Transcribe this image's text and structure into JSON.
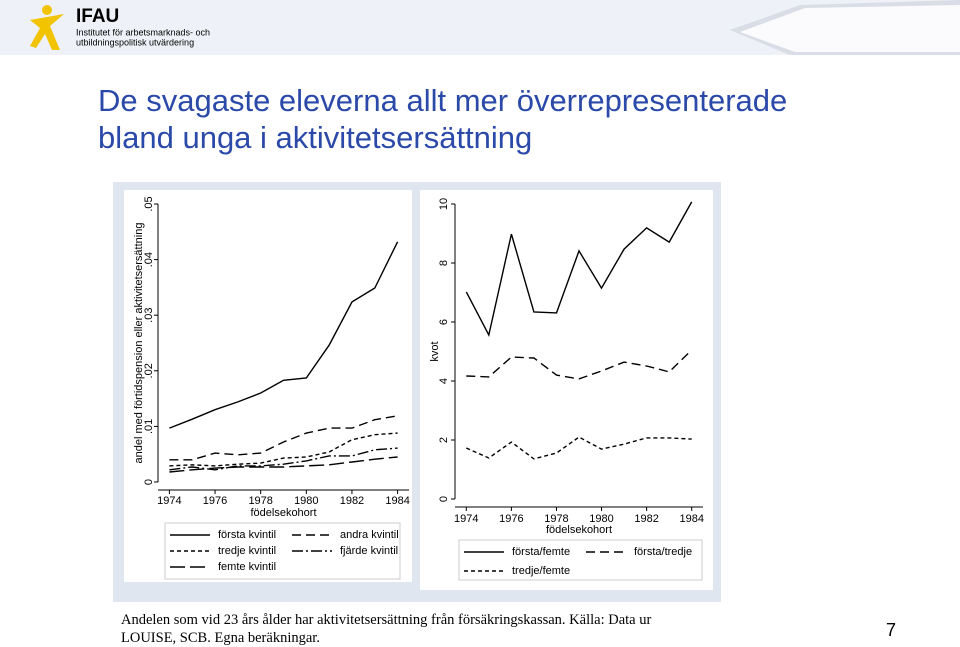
{
  "header": {
    "logo": "IFAU",
    "logo_subtitle_1": "Institutet för arbetsmarknads- och",
    "logo_subtitle_2": "utbildningspolitisk utvärdering",
    "title": "De svagaste eleverna allt mer överrepresenterade bland unga i aktivitetsersättning"
  },
  "chart_data": [
    {
      "type": "line",
      "x_label": "födelsekohort",
      "y_label": "andel med förtidspension eller aktivitetsersättning",
      "x": [
        1974,
        1975,
        1976,
        1977,
        1978,
        1979,
        1980,
        1981,
        1982,
        1983,
        1984
      ],
      "xlim": [
        1973.5,
        1984.5
      ],
      "xticks": [
        1974,
        1976,
        1978,
        1980,
        1982,
        1984
      ],
      "ylim": [
        0,
        0.05
      ],
      "yticks": [
        0,
        {
          "value": 0.01,
          "label": ".01"
        },
        {
          "value": 0.02,
          "label": ".02"
        },
        {
          "value": 0.03,
          "label": ".03"
        },
        {
          "value": 0.04,
          "label": ".04"
        },
        {
          "value": 0.05,
          "label": ".05"
        }
      ],
      "series": [
        {
          "name": "första kvintil",
          "color": "#000000",
          "dash": "solid",
          "values": [
            0.0097,
            0.0113,
            0.013,
            0.0144,
            0.016,
            0.0183,
            0.0187,
            0.0246,
            0.0324,
            0.0349,
            0.0432
          ]
        },
        {
          "name": "andra kvintil",
          "color": "#000000",
          "dash": "dash",
          "values": [
            0.004,
            0.004,
            0.0052,
            0.0049,
            0.0052,
            0.0072,
            0.0088,
            0.0097,
            0.0097,
            0.0112,
            0.0119
          ]
        },
        {
          "name": "tredje kvintil",
          "color": "#000000",
          "dash": "shortdash",
          "values": [
            0.0029,
            0.0031,
            0.0029,
            0.0032,
            0.0034,
            0.0043,
            0.0045,
            0.0054,
            0.0076,
            0.0085,
            0.0088
          ]
        },
        {
          "name": "fjärde kvintil",
          "color": "#000000",
          "dash": "dashdot",
          "values": [
            0.0022,
            0.0027,
            0.0022,
            0.0029,
            0.0029,
            0.0032,
            0.0038,
            0.0047,
            0.0047,
            0.0058,
            0.0061
          ]
        },
        {
          "name": "femte kvintil",
          "color": "#000000",
          "dash": "longdash",
          "values": [
            0.0018,
            0.0022,
            0.0025,
            0.0027,
            0.0027,
            0.0027,
            0.0029,
            0.0031,
            0.0036,
            0.0041,
            0.0045
          ]
        }
      ]
    },
    {
      "type": "line",
      "x_label": "födelsekohort",
      "y_label": "kvot",
      "x": [
        1974,
        1975,
        1976,
        1977,
        1978,
        1979,
        1980,
        1981,
        1982,
        1983,
        1984
      ],
      "xlim": [
        1973.5,
        1984.5
      ],
      "xticks": [
        1974,
        1976,
        1978,
        1980,
        1982,
        1984
      ],
      "ylim": [
        0,
        10
      ],
      "yticks": [
        0,
        2,
        4,
        6,
        8,
        10
      ],
      "series": [
        {
          "name": "första/femte",
          "color": "#000000",
          "dash": "solid",
          "values": [
            7.02,
            5.56,
            8.98,
            6.34,
            6.31,
            8.41,
            7.15,
            8.47,
            9.19,
            8.71,
            10.07
          ]
        },
        {
          "name": "första/tredje",
          "color": "#000000",
          "dash": "dash",
          "values": [
            4.17,
            4.14,
            4.81,
            4.78,
            4.2,
            4.07,
            4.34,
            4.64,
            4.51,
            4.31,
            5.05
          ]
        },
        {
          "name": "tredje/femte",
          "color": "#000000",
          "dash": "shortdash",
          "values": [
            1.73,
            1.39,
            1.93,
            1.36,
            1.56,
            2.1,
            1.69,
            1.86,
            2.07,
            2.07,
            2.03
          ]
        }
      ]
    }
  ],
  "footer": {
    "note": "Andelen som vid 23 års ålder har aktivitetsersättning från försäkringskassan. Källa: Data ur LOUISE, SCB. Egna beräkningar.",
    "page_number": 7
  }
}
